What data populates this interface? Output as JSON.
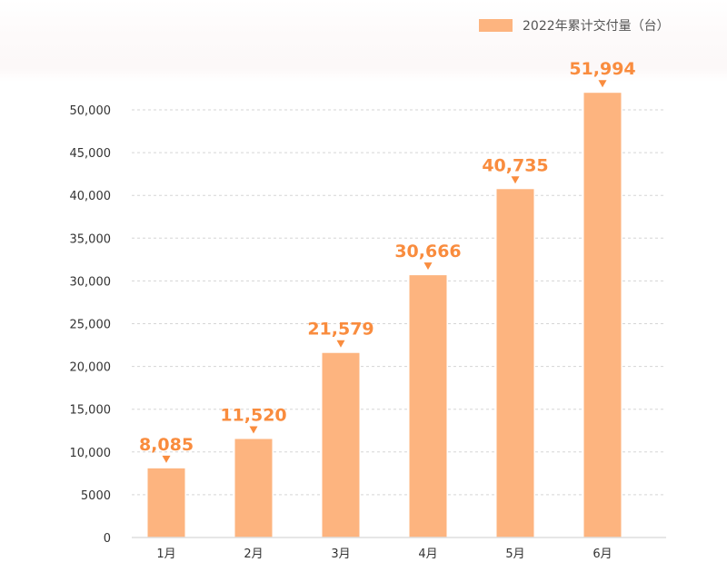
{
  "chart_data": {
    "type": "bar",
    "title": "",
    "xlabel": "",
    "ylabel": "",
    "categories": [
      "1月",
      "2月",
      "3月",
      "4月",
      "5月",
      "6月"
    ],
    "series": [
      {
        "name": "2022年累计交付量（台）",
        "values": [
          8085,
          11520,
          21579,
          30666,
          40735,
          51994
        ]
      }
    ],
    "data_labels": [
      "8,085",
      "11,520",
      "21,579",
      "30,666",
      "40,735",
      "51,994"
    ],
    "ylim": [
      0,
      50000
    ],
    "yticks": [
      0,
      5000,
      10000,
      15000,
      20000,
      25000,
      30000,
      35000,
      40000,
      45000,
      50000
    ],
    "ytick_labels": [
      "0",
      "5000",
      "10,000",
      "15,000",
      "20,000",
      "25,000",
      "30,000",
      "35,000",
      "40,000",
      "45,000",
      "50,000"
    ],
    "grid": "horizontal dashed",
    "legend": "top-right",
    "colors": {
      "bar": "#fdb47f",
      "label": "#f98c3e"
    }
  }
}
